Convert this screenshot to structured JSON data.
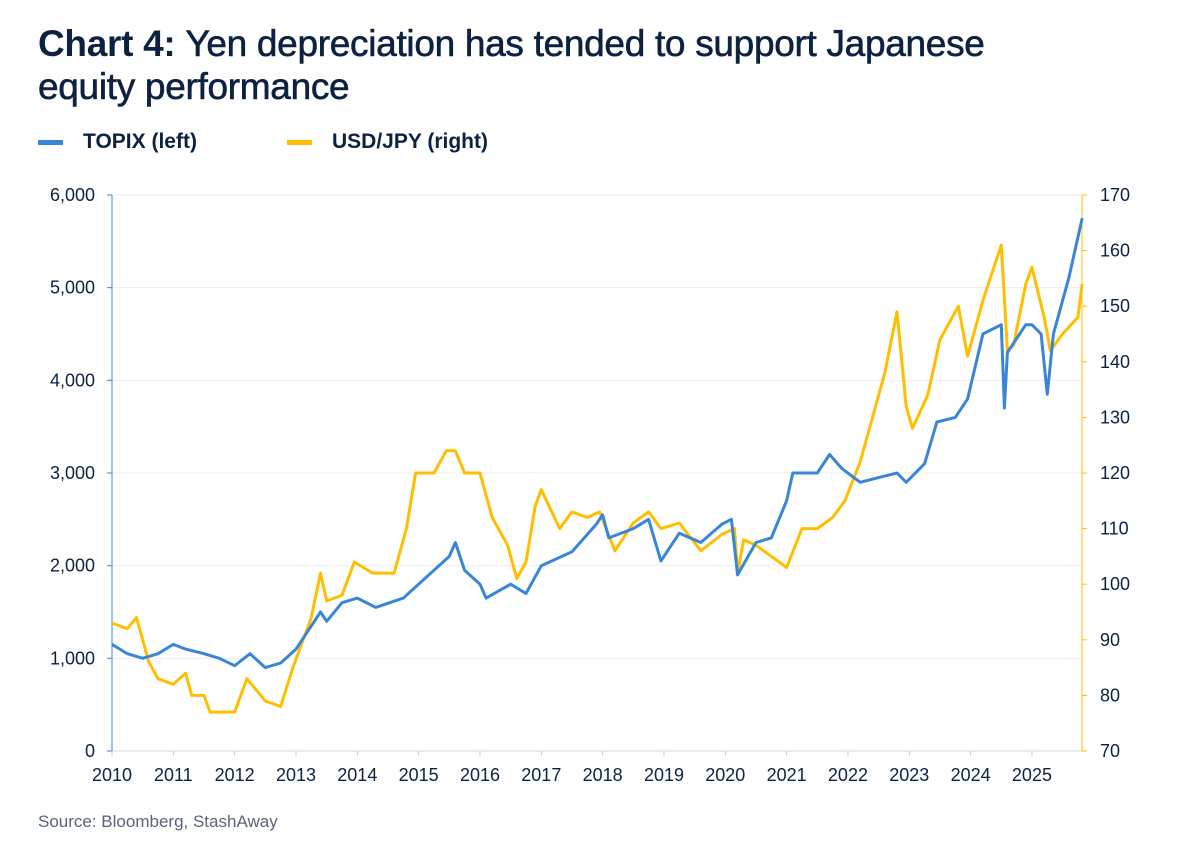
{
  "chart_data": {
    "type": "line",
    "title_prefix": "Chart 4:",
    "title": "Yen depreciation has tended to support Japanese equity performance",
    "source": "Source: Bloomberg, StashAway",
    "legend_placement": "top-left",
    "grid": true,
    "x_ticks": [
      "2010",
      "2011",
      "2012",
      "2013",
      "2014",
      "2015",
      "2016",
      "2017",
      "2018",
      "2019",
      "2020",
      "2021",
      "2022",
      "2023",
      "2024",
      "2025"
    ],
    "xlim": [
      2010,
      2025.85
    ],
    "y_left": {
      "lim": [
        0,
        6000
      ],
      "ticks": [
        "0",
        "1,000",
        "2,000",
        "3,000",
        "4,000",
        "5,000",
        "6,000"
      ],
      "color": "#3a86d6"
    },
    "y_right": {
      "lim": [
        70,
        170
      ],
      "ticks": [
        "70",
        "80",
        "90",
        "100",
        "110",
        "120",
        "130",
        "140",
        "150",
        "160",
        "170"
      ],
      "color": "#ffbf00"
    },
    "series": [
      {
        "name": "TOPIX (left)",
        "axis": "left",
        "color": "#3a86d6",
        "x": [
          2010.0,
          2010.25,
          2010.5,
          2010.75,
          2011.0,
          2011.2,
          2011.5,
          2011.75,
          2012.0,
          2012.25,
          2012.5,
          2012.75,
          2013.0,
          2013.4,
          2013.5,
          2013.75,
          2014.0,
          2014.3,
          2014.75,
          2015.0,
          2015.5,
          2015.6,
          2015.75,
          2016.0,
          2016.1,
          2016.5,
          2016.75,
          2017.0,
          2017.5,
          2017.9,
          2018.0,
          2018.1,
          2018.5,
          2018.75,
          2018.95,
          2019.25,
          2019.6,
          2019.95,
          2020.1,
          2020.2,
          2020.5,
          2020.75,
          2021.0,
          2021.1,
          2021.5,
          2021.7,
          2021.9,
          2022.2,
          2022.5,
          2022.8,
          2022.95,
          2023.25,
          2023.45,
          2023.75,
          2023.95,
          2024.2,
          2024.5,
          2024.55,
          2024.6,
          2024.9,
          2025.0,
          2025.15,
          2025.25,
          2025.35,
          2025.6,
          2025.82
        ],
        "y": [
          1150,
          1050,
          1000,
          1050,
          1150,
          1100,
          1050,
          1000,
          920,
          1050,
          900,
          950,
          1100,
          1500,
          1400,
          1600,
          1650,
          1550,
          1650,
          1800,
          2100,
          2250,
          1950,
          1800,
          1650,
          1800,
          1700,
          2000,
          2150,
          2450,
          2550,
          2300,
          2400,
          2500,
          2050,
          2350,
          2250,
          2450,
          2500,
          1900,
          2250,
          2300,
          2700,
          3000,
          3000,
          3200,
          3050,
          2900,
          2950,
          3000,
          2900,
          3100,
          3550,
          3600,
          3800,
          4500,
          4600,
          3700,
          4300,
          4600,
          4600,
          4500,
          3850,
          4500,
          5100,
          5750
        ]
      },
      {
        "name": "USD/JPY (right)",
        "axis": "right",
        "color": "#ffbf00",
        "x": [
          2010.0,
          2010.25,
          2010.4,
          2010.6,
          2010.75,
          2011.0,
          2011.2,
          2011.3,
          2011.5,
          2011.6,
          2011.9,
          2012.0,
          2012.2,
          2012.5,
          2012.75,
          2012.95,
          2013.25,
          2013.4,
          2013.5,
          2013.75,
          2013.95,
          2014.25,
          2014.6,
          2014.8,
          2014.95,
          2015.25,
          2015.45,
          2015.6,
          2015.75,
          2016.0,
          2016.2,
          2016.45,
          2016.6,
          2016.75,
          2016.9,
          2017.0,
          2017.3,
          2017.5,
          2017.75,
          2017.95,
          2018.2,
          2018.5,
          2018.75,
          2018.95,
          2019.25,
          2019.6,
          2019.95,
          2020.15,
          2020.2,
          2020.3,
          2020.5,
          2020.75,
          2021.0,
          2021.25,
          2021.5,
          2021.75,
          2021.95,
          2022.2,
          2022.4,
          2022.6,
          2022.8,
          2022.95,
          2023.05,
          2023.3,
          2023.5,
          2023.8,
          2023.95,
          2024.2,
          2024.5,
          2024.6,
          2024.7,
          2024.9,
          2025.0,
          2025.2,
          2025.3,
          2025.5,
          2025.75,
          2025.82
        ],
        "y": [
          93,
          92,
          94,
          86,
          83,
          82,
          84,
          80,
          80,
          77,
          77,
          77,
          83,
          79,
          78,
          85,
          94,
          102,
          97,
          98,
          104,
          102,
          102,
          110,
          120,
          120,
          124,
          124,
          120,
          120,
          112,
          107,
          101,
          104,
          114,
          117,
          110,
          113,
          112,
          113,
          106,
          111,
          113,
          110,
          111,
          106,
          109,
          110,
          102,
          108,
          107,
          105,
          103,
          110,
          110,
          112,
          115,
          122,
          130,
          138,
          149,
          132,
          128,
          134,
          144,
          150,
          141,
          151,
          161,
          142,
          143,
          154,
          157,
          148,
          142,
          145,
          148,
          154
        ]
      }
    ]
  }
}
